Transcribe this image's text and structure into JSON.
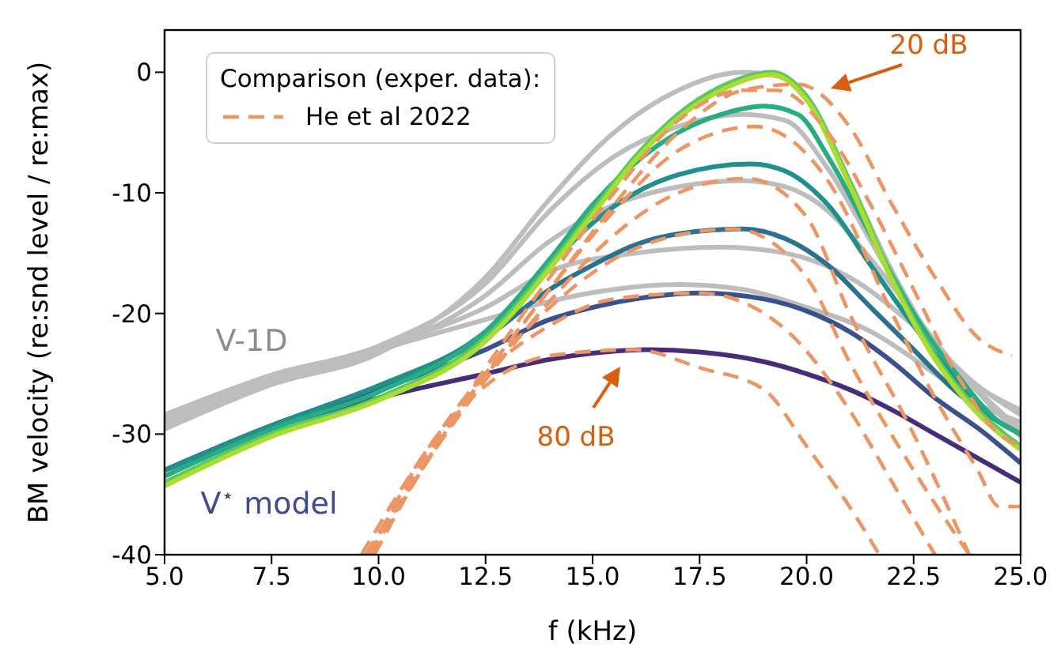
{
  "chart_data": {
    "type": "line",
    "xlabel": "f (kHz)",
    "ylabel": "BM velocity (re:snd level / re:max)",
    "legend_title": "Comparison (exper. data):",
    "legend": "top left",
    "marker": "none",
    "line_style": "solid",
    "xlim": [
      5,
      25
    ],
    "xticks": [
      {
        "value": 5,
        "label": "5.0"
      },
      {
        "value": 7.5,
        "label": "7.5"
      },
      {
        "value": 10,
        "label": "10.0"
      },
      {
        "value": 12.5,
        "label": "12.5"
      },
      {
        "value": 15,
        "label": "15.0"
      },
      {
        "value": 17.5,
        "label": "17.5"
      },
      {
        "value": 20,
        "label": "20.0"
      },
      {
        "value": 22.5,
        "label": "22.5"
      },
      {
        "value": 25,
        "label": "25.0"
      }
    ],
    "ylim": [
      -40,
      3.5
    ],
    "yticks": [
      -40,
      -30,
      -20,
      -10,
      0
    ],
    "annotations": [
      "V-1D",
      "V$^{⋆}$ model",
      "20 dB",
      "80 dB"
    ],
    "series": [
      {
        "color": "#bdbdbd",
        "x": [
          5,
          7.5,
          10,
          12.5,
          14,
          15.5,
          17,
          18.5,
          20,
          21.5,
          23,
          24,
          25
        ],
        "values": [
          -29,
          -25.5,
          -23,
          -20.5,
          -19,
          -18,
          -17.6,
          -18,
          -19.5,
          -21.5,
          -25,
          -27.5,
          -29
        ]
      },
      {
        "color": "#bdbdbd",
        "x": [
          5,
          7.5,
          10,
          12.5,
          14,
          16,
          18,
          19.5,
          21,
          22.5,
          24,
          25
        ],
        "values": [
          -28.7,
          -25.3,
          -22.8,
          -19.5,
          -16.5,
          -15,
          -14.5,
          -15,
          -17,
          -21,
          -26,
          -28.4
        ]
      },
      {
        "color": "#bdbdbd",
        "x": [
          5,
          7.5,
          10,
          12.5,
          14,
          15.5,
          17,
          18.5,
          19.5,
          20.5,
          21.5,
          22.5,
          23.5,
          25
        ],
        "values": [
          -29.3,
          -25.7,
          -23.2,
          -18.5,
          -14,
          -11,
          -9.5,
          -9,
          -9.5,
          -11.5,
          -15.5,
          -20,
          -24.5,
          -29.6
        ]
      },
      {
        "color": "#bdbdbd",
        "x": [
          5,
          7.5,
          10,
          12.5,
          14,
          15.5,
          17,
          18.5,
          19.5,
          20.5,
          21.5,
          22.5,
          23.5,
          25
        ],
        "values": [
          -28.4,
          -25.1,
          -22.7,
          -17.5,
          -11.5,
          -7,
          -4.5,
          -3.5,
          -4,
          -8,
          -14,
          -20,
          -24.5,
          -28
        ]
      },
      {
        "color": "#bdbdbd",
        "x": [
          5,
          7.5,
          10,
          12.5,
          14,
          15.5,
          17,
          18.5,
          19.3,
          20,
          21,
          22,
          23,
          24,
          25
        ],
        "values": [
          -29.6,
          -25.9,
          -23.3,
          -17,
          -10.5,
          -5,
          -1.5,
          0,
          -0.3,
          -2,
          -9,
          -16.5,
          -22.5,
          -26.5,
          -30.2
        ]
      },
      {
        "color": "#472c7a",
        "x": [
          5,
          7.5,
          10,
          12.5,
          14,
          15,
          16.3,
          17.5,
          19,
          20,
          21,
          22,
          23,
          24,
          25
        ],
        "values": [
          -33,
          -29.5,
          -27,
          -25,
          -23.8,
          -23.3,
          -23,
          -23.2,
          -24,
          -25,
          -26.3,
          -28,
          -30,
          -32,
          -34
        ]
      },
      {
        "color": "#3b518b",
        "x": [
          5,
          7.5,
          10,
          12.5,
          14,
          15,
          16,
          17.5,
          19,
          20,
          21,
          22,
          23,
          24,
          25
        ],
        "values": [
          -33,
          -29.3,
          -26.3,
          -23,
          -20.5,
          -19.5,
          -18.8,
          -18.3,
          -18.8,
          -19.8,
          -21.5,
          -24,
          -27,
          -29.5,
          -32.4
        ]
      },
      {
        "color": "#2c718e",
        "x": [
          5,
          7.5,
          10,
          12.5,
          14,
          15,
          16,
          17,
          18.5,
          19.5,
          20.5,
          21.5,
          22.5,
          23.5,
          24.5,
          25
        ],
        "values": [
          -33,
          -29.3,
          -26,
          -22,
          -18,
          -16,
          -14.3,
          -13.4,
          -13,
          -13.8,
          -16,
          -19.5,
          -23,
          -26.5,
          -29,
          -30
        ]
      },
      {
        "color": "#21908d",
        "x": [
          5,
          7.5,
          10,
          12.5,
          14,
          15,
          16,
          17,
          18.7,
          19.5,
          20.5,
          21.5,
          22.5,
          23.5,
          24.5,
          25
        ],
        "values": [
          -33,
          -29.3,
          -26,
          -21.5,
          -16,
          -12.5,
          -10,
          -8.5,
          -7.6,
          -8.2,
          -11,
          -16,
          -21,
          -25.5,
          -29,
          -30
        ]
      },
      {
        "color": "#27ad81",
        "x": [
          5,
          7.5,
          10,
          12.5,
          14,
          15,
          16,
          17,
          18,
          19,
          19.8,
          20.5,
          21.5,
          22.5,
          23.5,
          24.5,
          25
        ],
        "values": [
          -33.5,
          -29.6,
          -26.5,
          -21.5,
          -15.5,
          -11,
          -7.5,
          -5,
          -3.5,
          -2.8,
          -3.5,
          -7,
          -13.5,
          -20,
          -25,
          -29,
          -30
        ]
      },
      {
        "color": "#5cc863",
        "x": [
          5,
          7.5,
          10,
          12.5,
          14,
          15,
          16,
          17,
          18,
          19.2,
          20,
          21,
          22,
          23,
          24,
          25
        ],
        "values": [
          -34,
          -30,
          -27,
          -22,
          -16,
          -11.5,
          -7,
          -3.5,
          -1.2,
          0,
          -2,
          -9,
          -17,
          -23.5,
          -28,
          -31
        ]
      },
      {
        "color": "#aadc32",
        "x": [
          5,
          7.5,
          10,
          12.5,
          14,
          15,
          16,
          17,
          18,
          19.2,
          20,
          21,
          22,
          23,
          24,
          25
        ],
        "values": [
          -34.3,
          -30.2,
          -27.2,
          -22.3,
          -16.3,
          -11.8,
          -7.3,
          -3.8,
          -1.5,
          -0.2,
          -2.3,
          -9.3,
          -17.3,
          -23.8,
          -28.3,
          -31.3
        ]
      },
      {
        "name": "He et al 2022",
        "color": "#eb9664",
        "line_style": "dashed",
        "x": [
          9.8,
          11,
          12.5,
          14,
          15.5,
          17,
          18.5,
          19.8,
          21,
          22,
          23,
          24,
          24.8
        ],
        "values": [
          -40,
          -33,
          -25,
          -18,
          -11,
          -5,
          -1.5,
          -1,
          -4.5,
          -11,
          -17,
          -22,
          -23.5
        ]
      },
      {
        "color": "#eb9664",
        "line_style": "dashed",
        "x": [
          9.7,
          11,
          12.5,
          14,
          15.5,
          17,
          18.5,
          19.3,
          20.5,
          21.5,
          22.5,
          23.5,
          24.5,
          25
        ],
        "values": [
          -40,
          -32.5,
          -24.5,
          -17,
          -10,
          -4,
          -1.5,
          -1.5,
          -5,
          -11,
          -18,
          -25,
          -30,
          -31
        ]
      },
      {
        "color": "#eb9664",
        "line_style": "dashed",
        "x": [
          9.9,
          11,
          12.5,
          14,
          15.5,
          17,
          18.8,
          20.5,
          22,
          23,
          24,
          24.5,
          25
        ],
        "values": [
          -40,
          -33,
          -25,
          -18,
          -11.5,
          -6.5,
          -4.5,
          -9,
          -20,
          -27,
          -33,
          -36,
          -36
        ]
      },
      {
        "color": "#eb9664",
        "line_style": "dashed",
        "x": [
          9.8,
          11,
          12.5,
          14,
          15.5,
          17,
          18.6,
          20,
          21,
          22.5,
          23.8
        ],
        "values": [
          -40,
          -33,
          -25.5,
          -19,
          -13.5,
          -10,
          -8.8,
          -12,
          -20,
          -30,
          -40
        ]
      },
      {
        "color": "#eb9664",
        "line_style": "dashed",
        "x": [
          9.7,
          11,
          12.5,
          14,
          15.5,
          17,
          18.3,
          20,
          21,
          22.5,
          23.8
        ],
        "values": [
          -40,
          -33,
          -25,
          -19.5,
          -15.5,
          -13.5,
          -13,
          -17,
          -24,
          -33,
          -40
        ]
      },
      {
        "color": "#eb9664",
        "line_style": "dashed",
        "x": [
          9.6,
          11,
          12.5,
          14,
          15.5,
          17.5,
          19.4,
          21,
          22,
          23
        ],
        "values": [
          -40,
          -32,
          -25,
          -21,
          -18.8,
          -18.3,
          -21,
          -28,
          -34,
          -40
        ]
      },
      {
        "color": "#eb9664",
        "line_style": "dashed",
        "x": [
          9.8,
          11,
          12.5,
          14,
          16,
          17.5,
          19,
          20,
          21,
          21.7
        ],
        "values": [
          -40,
          -32,
          -26,
          -23.5,
          -23,
          -24.5,
          -26.3,
          -31,
          -36,
          -40
        ]
      }
    ]
  }
}
